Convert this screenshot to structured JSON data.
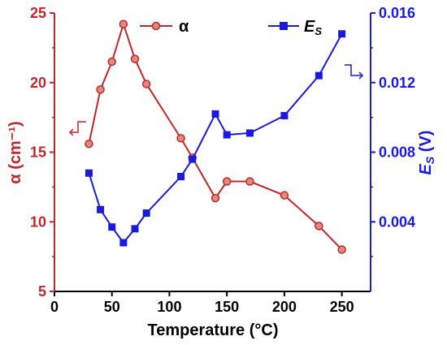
{
  "chart_data": {
    "type": "line",
    "xlabel": "Temperature (°C)",
    "ylabel_left": "α (cm⁻¹)",
    "ylabel_right": "E_S (V)",
    "xlim": [
      0,
      275
    ],
    "xticks": [
      "0",
      "50",
      "100",
      "150",
      "200",
      "250"
    ],
    "ylim_left": [
      5,
      25
    ],
    "yticks_left": [
      "5",
      "10",
      "15",
      "20",
      "25"
    ],
    "ylim_right": [
      0.0,
      0.016
    ],
    "yticks_right": [
      "0.004",
      "0.008",
      "0.012",
      "0.016"
    ],
    "grid": false,
    "legend_position": "top",
    "series": [
      {
        "name": "α",
        "axis": "left",
        "color": "#c0282b",
        "marker": "circle",
        "x": [
          30,
          40,
          50,
          60,
          70,
          80,
          110,
          120,
          140,
          150,
          170,
          200,
          230,
          250
        ],
        "y": [
          15.6,
          19.5,
          21.5,
          24.2,
          21.7,
          19.9,
          16.0,
          14.6,
          11.7,
          12.9,
          12.9,
          11.9,
          9.7,
          8.0
        ]
      },
      {
        "name": "E_S",
        "axis": "right",
        "color": "#1a1adc",
        "marker": "square",
        "x": [
          30,
          40,
          50,
          60,
          70,
          80,
          110,
          120,
          140,
          150,
          170,
          200,
          230,
          250
        ],
        "y": [
          0.0068,
          0.0047,
          0.0037,
          0.0028,
          0.0036,
          0.0045,
          0.0066,
          0.0076,
          0.0102,
          0.009,
          0.0091,
          0.0101,
          0.0124,
          0.0148
        ]
      }
    ]
  },
  "colors": {
    "left_axis": "#c0282b",
    "right_axis": "#1a1adc",
    "marker_face_left": "#e08a7e"
  }
}
